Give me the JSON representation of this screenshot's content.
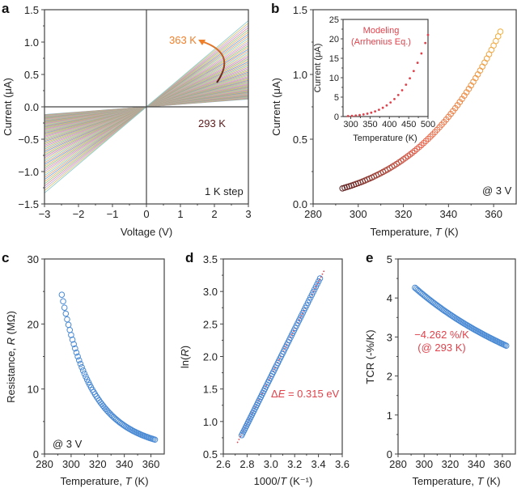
{
  "chart_data": [
    {
      "id": "a",
      "type": "line",
      "panel_label": "a",
      "title": "",
      "xlabel": "Voltage (V)",
      "ylabel": "Current (μA)",
      "xlim": [
        -3,
        3
      ],
      "ylim": [
        -1.5,
        1.5
      ],
      "xticks": [
        -3,
        -2,
        -1,
        0,
        1,
        2,
        3
      ],
      "xtick_labels": [
        "−3",
        "−2",
        "−1",
        "0",
        "1",
        "2",
        "3"
      ],
      "yticks": [
        -1.5,
        -1.0,
        -0.5,
        0.0,
        0.5,
        1.0,
        1.5
      ],
      "ytick_labels": [
        "−1.5",
        "−1.0",
        "−0.5",
        "0.0",
        "0.5",
        "1.0",
        "1.5"
      ],
      "series_description": "71 linear I-V curves from 293 K to 363 K in 1 K steps",
      "temperature_range_K": [
        293,
        363
      ],
      "temperature_step_K": 1,
      "current_at_3V_uA": {
        "293": 0.12,
        "363": 1.37
      },
      "line_colors": [
        "#6a9fd4",
        "#e8a860",
        "#8bc48a",
        "#d98b9e",
        "#b79bd0",
        "#d6c06a",
        "#7fc4c8",
        "#e39a6c"
      ],
      "annotations": {
        "high_label": "363 K",
        "high_color": "#f07f2a",
        "low_label": "293 K",
        "low_color": "#5a1a1a",
        "step_label": "1 K step"
      }
    },
    {
      "id": "b",
      "type": "scatter",
      "panel_label": "b",
      "xlabel_prefix": "Temperature, ",
      "xlabel_var": "T",
      "xlabel_suffix": " (K)",
      "ylabel": "Current (μA)",
      "xlim": [
        280,
        370
      ],
      "ylim": [
        0.0,
        1.5
      ],
      "xticks": [
        280,
        300,
        320,
        340,
        360
      ],
      "xtick_labels": [
        "280",
        "300",
        "320",
        "340",
        "360"
      ],
      "yticks": [
        0.0,
        0.5,
        1.0,
        1.5
      ],
      "ytick_labels": [
        "0.0",
        "0.5",
        "1.0",
        "1.5"
      ],
      "x_range": [
        293,
        363
      ],
      "step": 1,
      "endpoints_uA": {
        "293": 0.12,
        "363": 1.37
      },
      "model": "I = 0.12 * exp(Ea/k * (1/293 - 1/T)), Ea = 0.315 eV",
      "color_gradient": [
        "#5a1a1a",
        "#e8604a",
        "#f0b040"
      ],
      "annotation": "@ 3 V",
      "inset": {
        "type": "scatter",
        "title_line1": "Modeling",
        "title_line2": "(Arrhenius Eq.)",
        "title_color": "#e0424c",
        "xlabel": "Temperature (K)",
        "ylabel": "Current (μA)",
        "xlim": [
          280,
          500
        ],
        "ylim": [
          0,
          25
        ],
        "xticks": [
          300,
          350,
          400,
          450,
          500
        ],
        "xtick_labels": [
          "300",
          "350",
          "400",
          "450",
          "500"
        ],
        "yticks": [
          0,
          5,
          10,
          15,
          20,
          25
        ],
        "ytick_labels": [
          "0",
          "5",
          "10",
          "15",
          "20",
          "25"
        ],
        "x": [
          293,
          303,
          313,
          323,
          333,
          343,
          353,
          363,
          373,
          383,
          393,
          403,
          413,
          423,
          433,
          443,
          453,
          463,
          473,
          483,
          493,
          500
        ],
        "note": "Arrhenius model extrapolated, reaching about 21 μA at 500 K",
        "dot_color": "#e0424c"
      }
    },
    {
      "id": "c",
      "type": "scatter",
      "panel_label": "c",
      "xlabel_prefix": "Temperature, ",
      "xlabel_var": "T",
      "xlabel_suffix": " (K)",
      "ylabel_prefix": "Resistance, ",
      "ylabel_var": "R",
      "ylabel_suffix": " (MΩ)",
      "xlim": [
        280,
        370
      ],
      "ylim": [
        0,
        30
      ],
      "xticks": [
        280,
        300,
        320,
        340,
        360
      ],
      "xtick_labels": [
        "280",
        "300",
        "320",
        "340",
        "360"
      ],
      "yticks": [
        0,
        10,
        20,
        30
      ],
      "ytick_labels": [
        "0",
        "10",
        "20",
        "30"
      ],
      "x_range": [
        293,
        363
      ],
      "endpoints_MOhm": {
        "293": 24.5,
        "363": 2.2
      },
      "marker_color": "#4a8ad4",
      "annotation": "@ 3 V"
    },
    {
      "id": "d",
      "type": "scatter",
      "panel_label": "d",
      "xlabel": "1000/T (K⁻¹)",
      "xlabel_prefix": "1000/",
      "xlabel_var": "T",
      "xlabel_suffix": " (K⁻¹)",
      "ylabel": "ln(R)",
      "ylabel_prefix": "ln(",
      "ylabel_var": "R",
      "ylabel_suffix": ")",
      "xlim": [
        2.6,
        3.6
      ],
      "ylim": [
        0.5,
        3.5
      ],
      "xticks": [
        2.6,
        2.8,
        3.0,
        3.2,
        3.4,
        3.6
      ],
      "xtick_labels": [
        "2.6",
        "2.8",
        "3.0",
        "3.2",
        "3.4",
        "3.6"
      ],
      "yticks": [
        0.5,
        1.0,
        1.5,
        2.0,
        2.5,
        3.0,
        3.5
      ],
      "ytick_labels": [
        "0.5",
        "1.0",
        "1.5",
        "2.0",
        "2.5",
        "3.0",
        "3.5"
      ],
      "data_endpoints": [
        [
          2.755,
          0.79
        ],
        [
          3.413,
          3.2
        ]
      ],
      "fit_endpoints": [
        [
          2.72,
          0.68
        ],
        [
          3.445,
          3.31
        ]
      ],
      "marker_color": "#4a8ad4",
      "fit_color": "#e0424c",
      "annotation_prefix": "Δ",
      "annotation_var": "E",
      "annotation_suffix": " = 0.315 eV"
    },
    {
      "id": "e",
      "type": "scatter",
      "panel_label": "e",
      "xlabel_prefix": "Temperature, ",
      "xlabel_var": "T",
      "xlabel_suffix": " (K)",
      "ylabel": "TCR (-%/K)",
      "xlim": [
        280,
        370
      ],
      "ylim": [
        0,
        5
      ],
      "xticks": [
        280,
        300,
        320,
        340,
        360
      ],
      "xtick_labels": [
        "280",
        "300",
        "320",
        "340",
        "360"
      ],
      "yticks": [
        0,
        1,
        2,
        3,
        4,
        5
      ],
      "ytick_labels": [
        "0",
        "1",
        "2",
        "3",
        "4",
        "5"
      ],
      "x_range": [
        293,
        363
      ],
      "endpoints": {
        "293": 4.262,
        "363": 2.78
      },
      "marker_color": "#4a8ad4",
      "annotation_line1": "−4.262 %/K",
      "annotation_line2": "(@ 293 K)"
    }
  ]
}
